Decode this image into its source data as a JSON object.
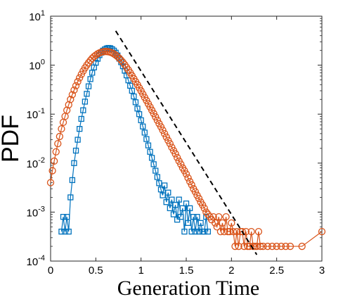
{
  "chart_data": {
    "type": "scatter",
    "xlabel": "Generation Time",
    "ylabel": "PDF",
    "xlim": [
      0,
      3
    ],
    "ylim_exponent": [
      -4,
      1
    ],
    "yscale": "log",
    "x_ticks": [
      "0",
      "0.5",
      "1",
      "1.5",
      "2",
      "2.5",
      "3"
    ],
    "y_ticks": [
      {
        "base": "10",
        "exp": "-4"
      },
      {
        "base": "10",
        "exp": "-3"
      },
      {
        "base": "10",
        "exp": "-2"
      },
      {
        "base": "10",
        "exp": "-1"
      },
      {
        "base": "10",
        "exp": "0"
      },
      {
        "base": "10",
        "exp": "1"
      }
    ],
    "grid": false,
    "legend": "none",
    "series": [
      {
        "marker": "square",
        "color": "#0072BD",
        "x": [
          0.12,
          0.14,
          0.16,
          0.18,
          0.2,
          0.22,
          0.24,
          0.26,
          0.28,
          0.3,
          0.32,
          0.34,
          0.36,
          0.38,
          0.4,
          0.42,
          0.44,
          0.46,
          0.48,
          0.5,
          0.52,
          0.54,
          0.56,
          0.58,
          0.6,
          0.62,
          0.64,
          0.66,
          0.68,
          0.7,
          0.72,
          0.74,
          0.76,
          0.78,
          0.8,
          0.82,
          0.84,
          0.86,
          0.88,
          0.9,
          0.92,
          0.94,
          0.96,
          0.98,
          1.0,
          1.02,
          1.04,
          1.06,
          1.08,
          1.1,
          1.12,
          1.14,
          1.16,
          1.18,
          1.2,
          1.22,
          1.24,
          1.26,
          1.28,
          1.3,
          1.32,
          1.34,
          1.36,
          1.38,
          1.4,
          1.42,
          1.44,
          1.46,
          1.48,
          1.5,
          1.52,
          1.54,
          1.56,
          1.58,
          1.6,
          1.62,
          1.64,
          1.66,
          1.68,
          1.7,
          1.72,
          1.74
        ],
        "y": [
          0.0004,
          0.0008,
          0.0004,
          0.0008,
          0.0004,
          0.002,
          0.0045,
          0.01,
          0.018,
          0.03,
          0.05,
          0.08,
          0.12,
          0.18,
          0.26,
          0.37,
          0.52,
          0.7,
          0.9,
          1.12,
          1.35,
          1.6,
          1.8,
          1.98,
          2.1,
          2.2,
          2.25,
          2.22,
          2.12,
          1.98,
          1.8,
          1.58,
          1.36,
          1.15,
          0.95,
          0.77,
          0.62,
          0.49,
          0.38,
          0.3,
          0.23,
          0.175,
          0.13,
          0.1,
          0.075,
          0.056,
          0.042,
          0.031,
          0.023,
          0.017,
          0.0128,
          0.0095,
          0.007,
          0.0052,
          0.0039,
          0.0029,
          0.0022,
          0.0035,
          0.0016,
          0.0025,
          0.0012,
          0.0018,
          0.0009,
          0.0014,
          0.0007,
          0.0018,
          0.0008,
          0.0012,
          0.0004,
          0.0015,
          0.0006,
          0.0012,
          0.0004,
          0.0008,
          0.0004,
          0.0008,
          0.0004,
          0.0006,
          0.0004,
          0.0004,
          0.0008,
          0.0004
        ]
      },
      {
        "marker": "circle",
        "color": "#D95319",
        "x": [
          0.0,
          0.02,
          0.04,
          0.06,
          0.08,
          0.1,
          0.12,
          0.14,
          0.16,
          0.18,
          0.2,
          0.22,
          0.24,
          0.26,
          0.28,
          0.3,
          0.32,
          0.34,
          0.36,
          0.38,
          0.4,
          0.42,
          0.44,
          0.46,
          0.48,
          0.5,
          0.52,
          0.54,
          0.56,
          0.58,
          0.6,
          0.62,
          0.64,
          0.66,
          0.68,
          0.7,
          0.72,
          0.74,
          0.76,
          0.78,
          0.8,
          0.82,
          0.84,
          0.86,
          0.88,
          0.9,
          0.92,
          0.94,
          0.96,
          0.98,
          1.0,
          1.02,
          1.04,
          1.06,
          1.08,
          1.1,
          1.12,
          1.14,
          1.16,
          1.18,
          1.2,
          1.22,
          1.24,
          1.26,
          1.28,
          1.3,
          1.32,
          1.34,
          1.36,
          1.38,
          1.4,
          1.42,
          1.44,
          1.46,
          1.48,
          1.5,
          1.52,
          1.54,
          1.56,
          1.58,
          1.6,
          1.62,
          1.64,
          1.66,
          1.68,
          1.7,
          1.72,
          1.74,
          1.76,
          1.78,
          1.8,
          1.82,
          1.84,
          1.86,
          1.88,
          1.9,
          1.92,
          1.94,
          1.96,
          1.98,
          2.0,
          2.02,
          2.04,
          2.06,
          2.08,
          2.1,
          2.12,
          2.14,
          2.16,
          2.18,
          2.2,
          2.22,
          2.24,
          2.26,
          2.28,
          2.3,
          2.32,
          2.35,
          2.4,
          2.45,
          2.5,
          2.55,
          2.6,
          2.65,
          2.78,
          3.0
        ],
        "y": [
          0.004,
          0.007,
          0.011,
          0.017,
          0.025,
          0.035,
          0.05,
          0.068,
          0.09,
          0.12,
          0.155,
          0.2,
          0.25,
          0.31,
          0.38,
          0.46,
          0.55,
          0.65,
          0.76,
          0.88,
          1.0,
          1.12,
          1.25,
          1.38,
          1.5,
          1.6,
          1.7,
          1.78,
          1.84,
          1.88,
          1.9,
          1.9,
          1.88,
          1.84,
          1.78,
          1.7,
          1.6,
          1.5,
          1.38,
          1.26,
          1.14,
          1.02,
          0.9,
          0.8,
          0.7,
          0.61,
          0.53,
          0.46,
          0.4,
          0.345,
          0.298,
          0.256,
          0.22,
          0.19,
          0.163,
          0.14,
          0.12,
          0.103,
          0.088,
          0.075,
          0.064,
          0.055,
          0.047,
          0.04,
          0.034,
          0.029,
          0.025,
          0.021,
          0.018,
          0.0155,
          0.013,
          0.011,
          0.0095,
          0.008,
          0.007,
          0.006,
          0.005,
          0.0042,
          0.0036,
          0.003,
          0.0026,
          0.0022,
          0.0019,
          0.0016,
          0.0014,
          0.0012,
          0.001,
          0.0009,
          0.0008,
          0.0007,
          0.0008,
          0.0006,
          0.0005,
          0.0008,
          0.0004,
          0.0006,
          0.0004,
          0.0008,
          0.0004,
          0.0004,
          0.0006,
          0.0004,
          0.0002,
          0.0004,
          0.0002,
          0.0004,
          0.0004,
          0.0002,
          0.0004,
          0.0002,
          0.0002,
          0.0004,
          0.0002,
          0.0002,
          0.0002,
          0.0004,
          0.0002,
          0.0002,
          0.0002,
          0.0002,
          0.0002,
          0.0002,
          0.0002,
          0.0002,
          0.0002,
          0.0004
        ]
      }
    ],
    "reference_line": {
      "style": "dashed",
      "color": "#000000",
      "x": [
        0.72,
        2.28
      ],
      "y": [
        5.0,
        0.000135
      ]
    }
  }
}
